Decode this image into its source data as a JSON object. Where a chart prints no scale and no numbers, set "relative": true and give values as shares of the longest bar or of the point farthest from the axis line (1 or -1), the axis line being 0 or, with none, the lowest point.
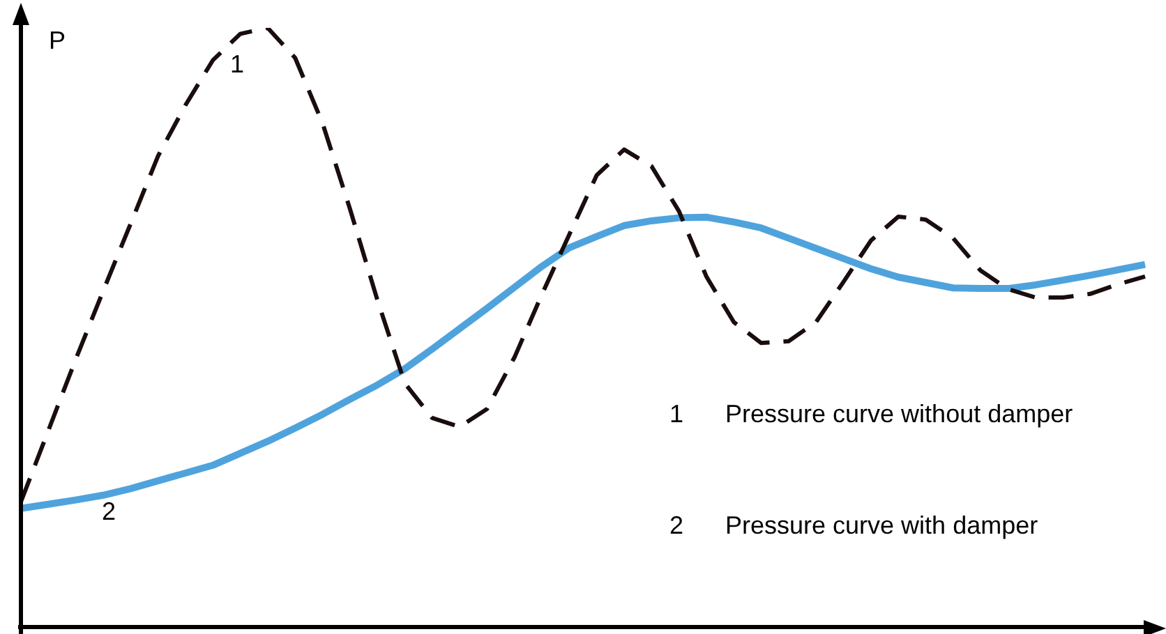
{
  "chart_data": {
    "type": "line",
    "relative": true,
    "ylabel": "P",
    "tick_labels": false,
    "legend": false,
    "marker": "none",
    "categories": [
      null,
      null,
      null,
      null,
      null,
      null,
      null,
      null,
      null,
      null,
      null,
      null,
      null,
      null,
      null,
      null,
      null,
      null,
      null,
      null,
      null,
      null,
      null,
      null,
      null,
      null,
      null,
      null,
      null,
      null,
      null,
      null,
      null,
      null,
      null,
      null,
      null,
      null,
      null,
      null,
      null,
      null
    ],
    "series": [
      {
        "color": "#1a0d0d",
        "line_style": "dashed",
        "values": [
          0.209,
          0.328,
          0.447,
          0.561,
          0.673,
          0.786,
          0.871,
          0.946,
          0.99,
          1,
          0.95,
          0.841,
          0.698,
          0.546,
          0.407,
          0.349,
          0.334,
          0.364,
          0.45,
          0.555,
          0.655,
          0.754,
          0.797,
          0.769,
          0.694,
          0.585,
          0.509,
          0.474,
          0.477,
          0.509,
          0.576,
          0.645,
          0.685,
          0.68,
          0.649,
          0.595,
          0.564,
          0.55,
          0.55,
          0.556,
          0.572,
          0.585
        ]
      },
      {
        "color": "#4fa3dc",
        "line_style": "solid",
        "values": [
          0.198,
          0.205,
          0.212,
          0.22,
          0.231,
          0.244,
          0.257,
          0.27,
          0.29,
          0.31,
          0.332,
          0.355,
          0.38,
          0.404,
          0.431,
          0.464,
          0.498,
          0.532,
          0.567,
          0.602,
          0.633,
          0.652,
          0.67,
          0.678,
          0.683,
          0.684,
          0.676,
          0.666,
          0.649,
          0.632,
          0.615,
          0.598,
          0.584,
          0.575,
          0.566,
          0.565,
          0.565,
          0.571,
          0.579,
          0.587,
          0.596,
          0.605
        ]
      }
    ],
    "annotations": [
      "1",
      "2",
      "1      Pressure curve without damper",
      "2      Pressure curve with damper"
    ]
  }
}
